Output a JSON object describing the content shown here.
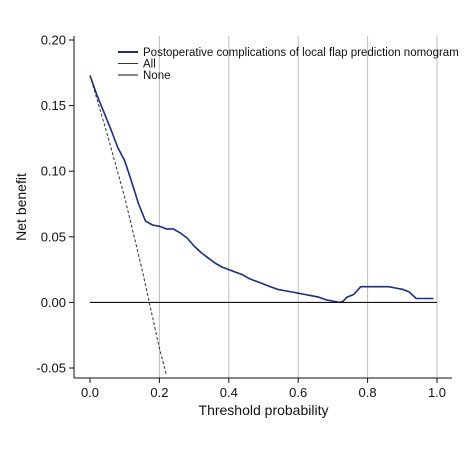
{
  "chart_data": {
    "type": "line",
    "xlabel": "Threshold probability",
    "ylabel": "Net benefit",
    "xlim": [
      0.0,
      1.0
    ],
    "ylim": [
      -0.05,
      0.2
    ],
    "x_ticks": [
      0.0,
      0.2,
      0.4,
      0.6,
      0.8,
      1.0
    ],
    "x_tick_labels": [
      "0.0",
      "0.2",
      "0.4",
      "0.6",
      "0.8",
      "1.0"
    ],
    "y_ticks": [
      -0.05,
      0.0,
      0.05,
      0.1,
      0.15,
      0.2
    ],
    "y_tick_labels": [
      "-0.05",
      "0.00",
      "0.05",
      "0.10",
      "0.15",
      "0.20"
    ],
    "grid": "vertical",
    "legend_placement": "top-right",
    "series": [
      {
        "name": "Postoperative complications of local flap prediction nomogram",
        "color": "#1a2f80",
        "style": "solid",
        "x": [
          0.0,
          0.02,
          0.04,
          0.06,
          0.08,
          0.1,
          0.12,
          0.14,
          0.16,
          0.18,
          0.2,
          0.22,
          0.24,
          0.26,
          0.28,
          0.3,
          0.32,
          0.34,
          0.36,
          0.38,
          0.4,
          0.42,
          0.44,
          0.46,
          0.48,
          0.5,
          0.52,
          0.54,
          0.56,
          0.58,
          0.6,
          0.62,
          0.64,
          0.66,
          0.68,
          0.7,
          0.72,
          0.73,
          0.74,
          0.76,
          0.78,
          0.8,
          0.82,
          0.84,
          0.86,
          0.88,
          0.9,
          0.92,
          0.94,
          0.96,
          0.99
        ],
        "values": [
          0.173,
          0.158,
          0.145,
          0.132,
          0.118,
          0.108,
          0.092,
          0.075,
          0.062,
          0.059,
          0.058,
          0.056,
          0.056,
          0.053,
          0.049,
          0.043,
          0.038,
          0.034,
          0.03,
          0.027,
          0.025,
          0.023,
          0.021,
          0.018,
          0.016,
          0.014,
          0.012,
          0.01,
          0.009,
          0.008,
          0.007,
          0.006,
          0.005,
          0.004,
          0.002,
          0.001,
          0.0,
          0.001,
          0.004,
          0.006,
          0.012,
          0.012,
          0.012,
          0.012,
          0.012,
          0.011,
          0.01,
          0.008,
          0.003,
          0.003,
          0.003
        ]
      },
      {
        "name": "All",
        "color": "#333333",
        "style": "dashed",
        "x": [
          0.0,
          0.05,
          0.1,
          0.15,
          0.2,
          0.22
        ],
        "values": [
          0.173,
          0.128,
          0.08,
          0.025,
          -0.035,
          -0.055
        ]
      },
      {
        "name": "None",
        "color": "#111111",
        "style": "solid",
        "x": [
          0.0,
          1.0
        ],
        "values": [
          0.0,
          0.0
        ]
      }
    ]
  }
}
